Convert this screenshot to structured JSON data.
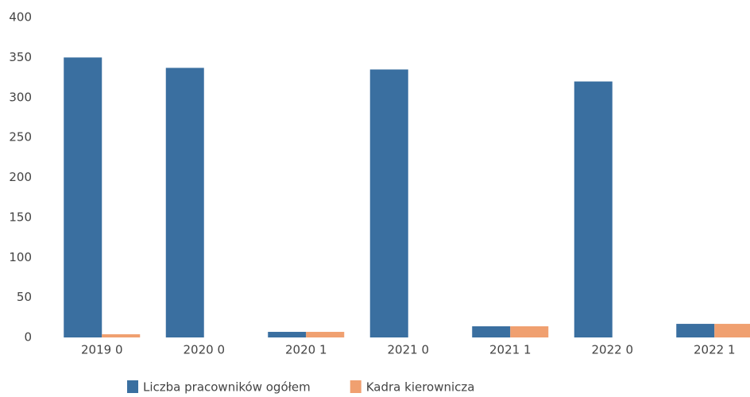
{
  "chart_data": {
    "type": "bar",
    "categories": [
      "2019 0",
      "2020 0",
      "2020 1",
      "2021 0",
      "2021 1",
      "2022 0",
      "2022 1"
    ],
    "series": [
      {
        "name": "Liczba pracowników ogółem",
        "color": "#3a6fa0",
        "values": [
          350,
          337,
          7,
          335,
          14,
          320,
          17
        ]
      },
      {
        "name": "Kadra kierownicza",
        "color": "#f0a070",
        "values": [
          4,
          0,
          7,
          0,
          14,
          0,
          17
        ]
      }
    ],
    "ylim": [
      0,
      400
    ],
    "yticks": [
      0,
      50,
      100,
      150,
      200,
      250,
      300,
      350,
      400
    ],
    "grid": false
  }
}
